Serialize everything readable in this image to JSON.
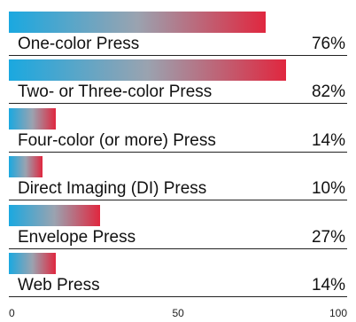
{
  "chart_data": {
    "type": "bar",
    "orientation": "horizontal",
    "categories": [
      "One-color Press",
      "Two- or Three-color Press",
      "Four-color (or more) Press",
      "Direct Imaging (DI) Press",
      "Envelope Press",
      "Web Press"
    ],
    "values": [
      76,
      82,
      14,
      10,
      27,
      14
    ],
    "value_labels": [
      "76%",
      "82%",
      "14%",
      "10%",
      "27%",
      "14%"
    ],
    "xlim": [
      0,
      100
    ],
    "x_ticks": [
      "0",
      "50",
      "100"
    ],
    "grid": false,
    "legend": "none",
    "colors": {
      "gradient_start": "#1aa8e0",
      "gradient_mid": "#9aa3b0",
      "gradient_end": "#e0273f",
      "text": "#111111"
    }
  }
}
